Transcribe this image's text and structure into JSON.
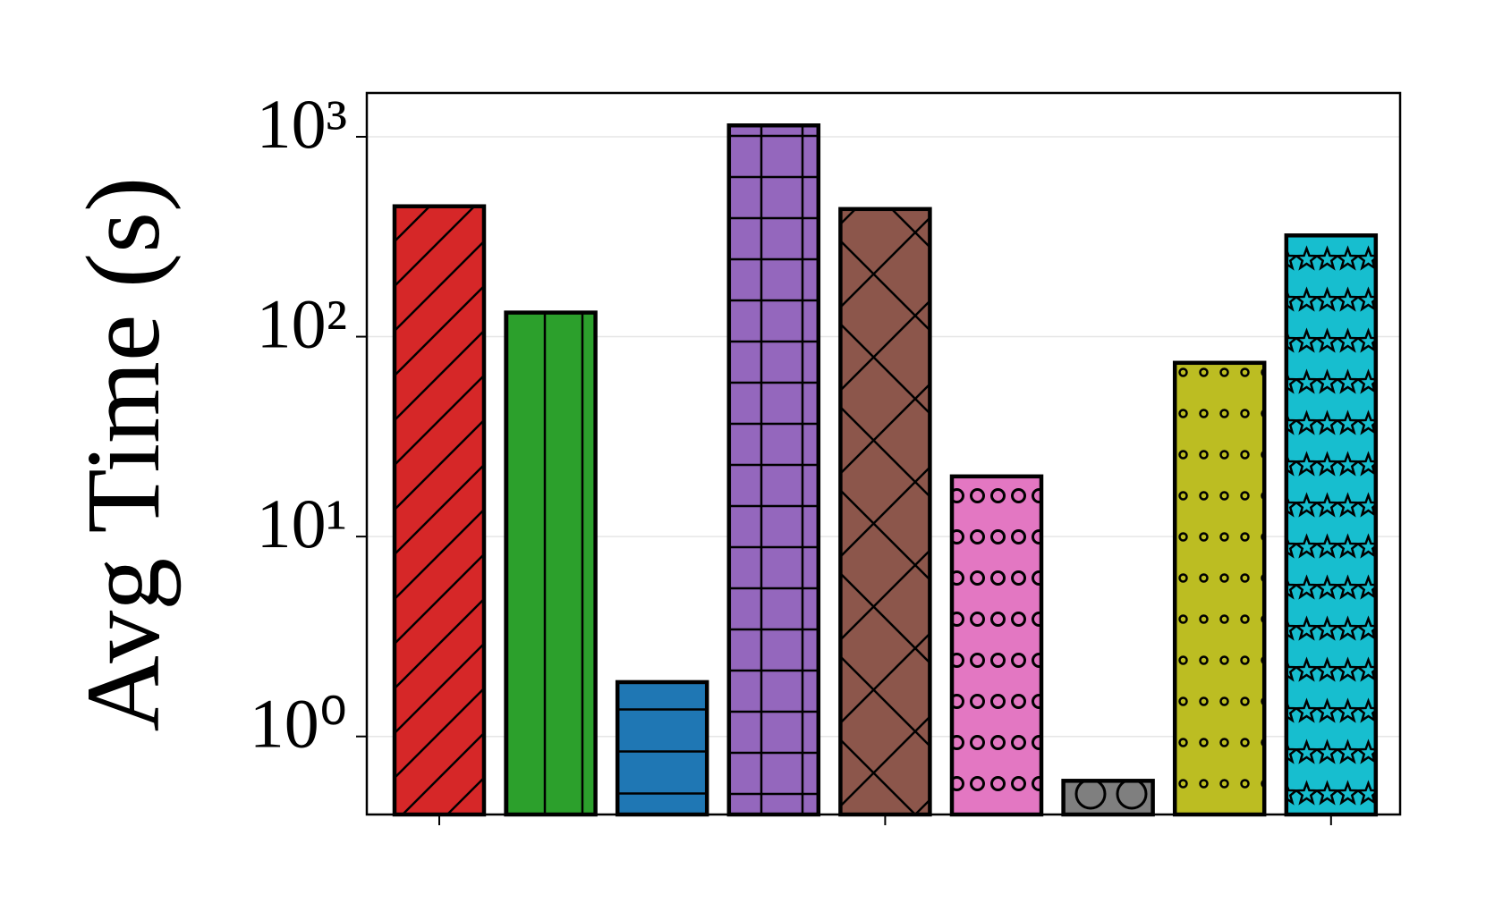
{
  "chart_data": {
    "type": "bar",
    "y_label": "Avg Time (s)",
    "categories": [
      null,
      null,
      null,
      null,
      null,
      null,
      null,
      null,
      null
    ],
    "values": [
      449,
      132,
      1.87,
      1140,
      435,
      20,
      0.6,
      74,
      321
    ],
    "colors": [
      "#d62728",
      "#2ca02c",
      "#1f77b4",
      "#9467bd",
      "#8c564b",
      "#e377c2",
      "#7f7f7f",
      "#bcbd22",
      "#17becf"
    ],
    "hatches": [
      "/",
      "|",
      "-",
      "+",
      "x",
      "o",
      "O",
      ".",
      "*"
    ],
    "log_y": true,
    "ylim": [
      0.407,
      1656
    ],
    "yticks": [
      {
        "value": 1,
        "label": "10⁰"
      },
      {
        "value": 10,
        "label": "10¹"
      },
      {
        "value": 100,
        "label": "10²"
      },
      {
        "value": 1000,
        "label": "10³"
      }
    ],
    "grid": true
  }
}
